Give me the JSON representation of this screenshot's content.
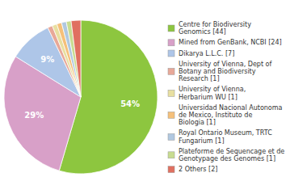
{
  "chart_data": {
    "type": "pie",
    "categories": [
      "Centre for Biodiversity\nGenomics [44]",
      "Mined from GenBank, NCBI [24]",
      "Dikarya L.L.C. [7]",
      "University of Vienna, Dept of\nBotany and Biodiversity\nResearch [1]",
      "University of Vienna,\nHerbarium WU [1]",
      "Universidad Nacional Autonoma\nde Mexico, Instituto de\nBiologia [1]",
      "Royal Ontario Museum, TRTC\nFungarium [1]",
      "Plateforme de Sequencage et de\nGenotypage des Genomes [1]",
      "2 Others [2]"
    ],
    "values": [
      54,
      29,
      9,
      1,
      1,
      1,
      1,
      1,
      2
    ],
    "value_labels": [
      "54%",
      "29%",
      "9%",
      null,
      null,
      null,
      null,
      null,
      null
    ],
    "data_labels": true,
    "colors": [
      "#8dc63f",
      "#d8a0c8",
      "#aec6e8",
      "#e8a898",
      "#e8dfa0",
      "#f5c07a",
      "#b0c8e0",
      "#c8dc90",
      "#e07060"
    ],
    "legend": "right"
  }
}
